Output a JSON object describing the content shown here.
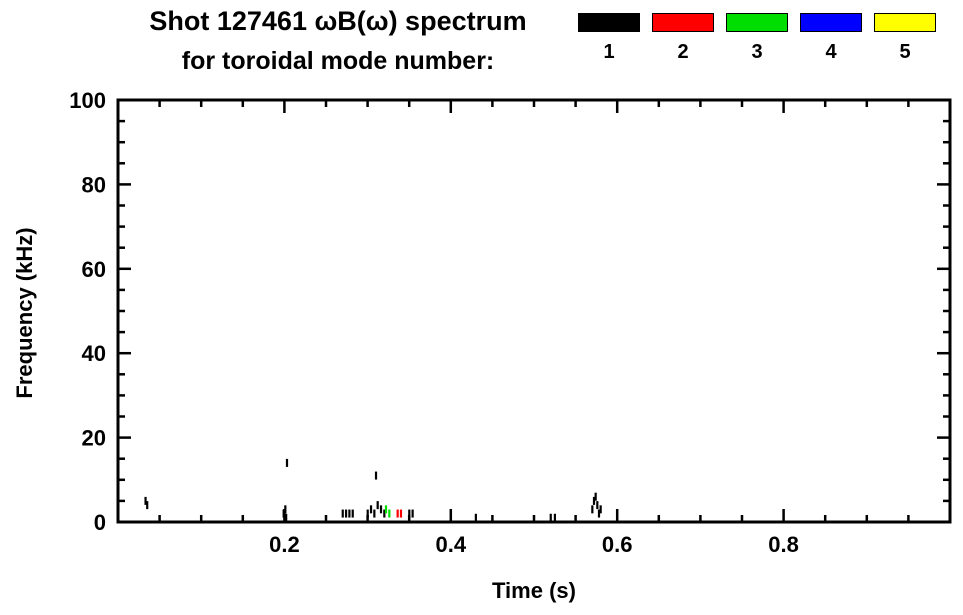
{
  "chart_data": {
    "type": "scatter",
    "title_line1": "Shot 127461 ωB(ω) spectrum",
    "title_line2": "for toroidal mode number:",
    "xlabel": "Time (s)",
    "ylabel": "Frequency (kHz)",
    "xlim": [
      0.0,
      1.0
    ],
    "ylim": [
      0,
      100
    ],
    "grid": false,
    "legend_position": "top-right",
    "x_major_ticks": [
      {
        "v": 0.2,
        "label": "0.2"
      },
      {
        "v": 0.4,
        "label": "0.4"
      },
      {
        "v": 0.6,
        "label": "0.6"
      },
      {
        "v": 0.8,
        "label": "0.8"
      }
    ],
    "x_minor_step": 0.05,
    "y_major_ticks": [
      {
        "v": 0,
        "label": "0"
      },
      {
        "v": 20,
        "label": "20"
      },
      {
        "v": 40,
        "label": "40"
      },
      {
        "v": 60,
        "label": "60"
      },
      {
        "v": 80,
        "label": "80"
      },
      {
        "v": 100,
        "label": "100"
      }
    ],
    "y_minor_step": 5,
    "legend": [
      {
        "mode": "1",
        "color": "#000000"
      },
      {
        "mode": "2",
        "color": "#ff0000"
      },
      {
        "mode": "3",
        "color": "#00dd00"
      },
      {
        "mode": "4",
        "color": "#0000ff"
      },
      {
        "mode": "5",
        "color": "#ffff00"
      }
    ],
    "series": [
      {
        "name": "n=1",
        "color": "#000000",
        "points": [
          [
            0.033,
            5
          ],
          [
            0.035,
            4
          ],
          [
            0.199,
            2
          ],
          [
            0.201,
            3
          ],
          [
            0.202,
            1
          ],
          [
            0.203,
            14
          ],
          [
            0.27,
            2
          ],
          [
            0.274,
            2
          ],
          [
            0.278,
            2
          ],
          [
            0.282,
            2
          ],
          [
            0.3,
            2
          ],
          [
            0.304,
            3
          ],
          [
            0.308,
            2
          ],
          [
            0.31,
            11
          ],
          [
            0.312,
            4
          ],
          [
            0.316,
            3
          ],
          [
            0.32,
            2
          ],
          [
            0.35,
            2
          ],
          [
            0.354,
            2
          ],
          [
            0.43,
            1
          ],
          [
            0.52,
            1
          ],
          [
            0.525,
            1
          ],
          [
            0.57,
            3
          ],
          [
            0.572,
            5
          ],
          [
            0.574,
            6
          ],
          [
            0.576,
            4
          ],
          [
            0.578,
            2
          ],
          [
            0.58,
            3
          ]
        ]
      },
      {
        "name": "n=2",
        "color": "#ff0000",
        "points": [
          [
            0.336,
            2
          ],
          [
            0.34,
            2
          ]
        ]
      },
      {
        "name": "n=3",
        "color": "#00dd00",
        "points": [
          [
            0.322,
            3
          ],
          [
            0.326,
            2
          ]
        ]
      },
      {
        "name": "n=4",
        "color": "#0000ff",
        "points": []
      },
      {
        "name": "n=5",
        "color": "#ffff00",
        "points": []
      }
    ]
  }
}
